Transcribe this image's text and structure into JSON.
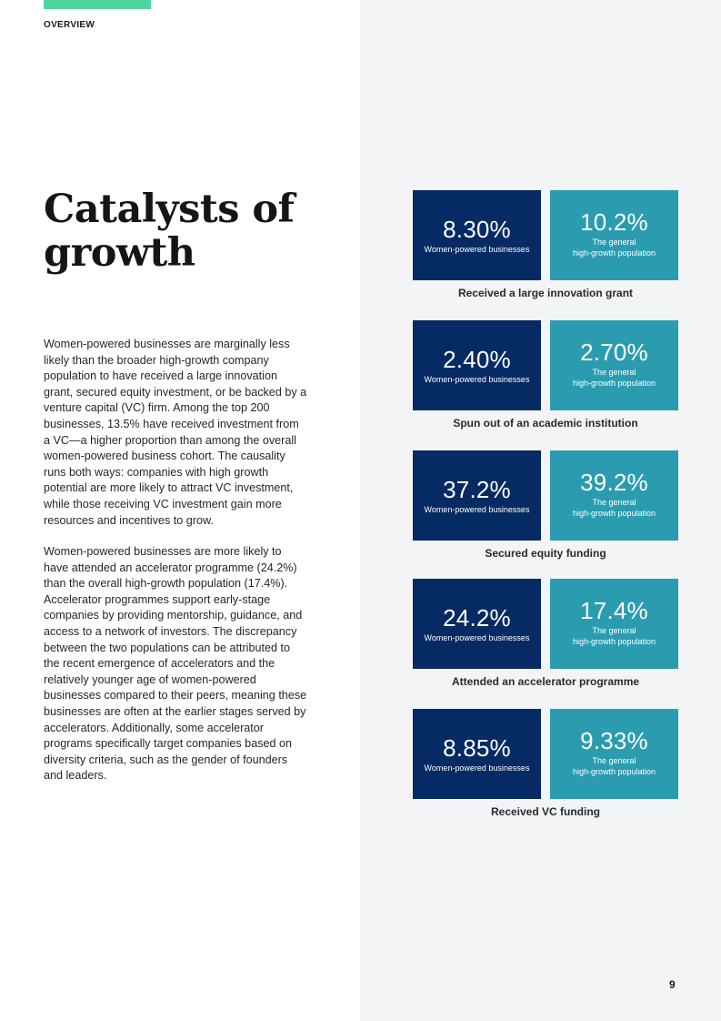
{
  "header": {
    "section_label": "OVERVIEW"
  },
  "title": {
    "line1": "Catalysts of",
    "line2": "growth"
  },
  "body": {
    "paragraph1": "Women-powered businesses are marginally less likely than the broader high-growth company population to have received a large innovation grant, secured equity investment, or be backed by a venture capital (VC) firm. Among the top 200 businesses, 13.5% have received investment from a VC—a higher proportion than among the overall women-powered business cohort. The causality runs both ways: companies with high growth potential are more likely to attract VC investment, while those receiving VC investment gain more resources and incentives to grow.",
    "paragraph2": "Women-powered businesses are more likely to have attended an accelerator programme (24.2%) than the overall high-growth population (17.4%). Accelerator programmes support early-stage companies by providing mentorship, guidance, and access to a network of investors. The discrepancy between the two populations can be attributed to the recent emergence of accelerators and the relatively younger age of women-powered businesses compared to their peers, meaning these businesses are often at the earlier stages served by accelerators. Additionally, some accelerator programs specifically target companies based on diversity criteria, such as the gender of founders and leaders."
  },
  "stats": [
    {
      "women_value": "8.30%",
      "women_label": "Women-powered businesses",
      "general_value": "10.2%",
      "general_label_1": "The general",
      "general_label_2": "high-growth population",
      "caption": "Received a large innovation grant"
    },
    {
      "women_value": "2.40%",
      "women_label": "Women-powered businesses",
      "general_value": "2.70%",
      "general_label_1": "The general",
      "general_label_2": "high-growth population",
      "caption": "Spun out of an academic institution"
    },
    {
      "women_value": "37.2%",
      "women_label": "Women-powered businesses",
      "general_value": "39.2%",
      "general_label_1": "The general",
      "general_label_2": "high-growth population",
      "caption": "Secured equity funding"
    },
    {
      "women_value": "24.2%",
      "women_label": "Women-powered businesses",
      "general_value": "17.4%",
      "general_label_1": "The general",
      "general_label_2": "high-growth population",
      "caption": "Attended an accelerator programme"
    },
    {
      "women_value": "8.85%",
      "women_label": "Women-powered businesses",
      "general_value": "9.33%",
      "general_label_1": "The general",
      "general_label_2": "high-growth population",
      "caption": "Received VC funding"
    }
  ],
  "colors": {
    "accent": "#4fd69f",
    "dark_box": "#062a64",
    "teal_box": "#2b9cb0",
    "panel_bg": "#f3f4f6"
  },
  "footer": {
    "page_number": "9"
  }
}
